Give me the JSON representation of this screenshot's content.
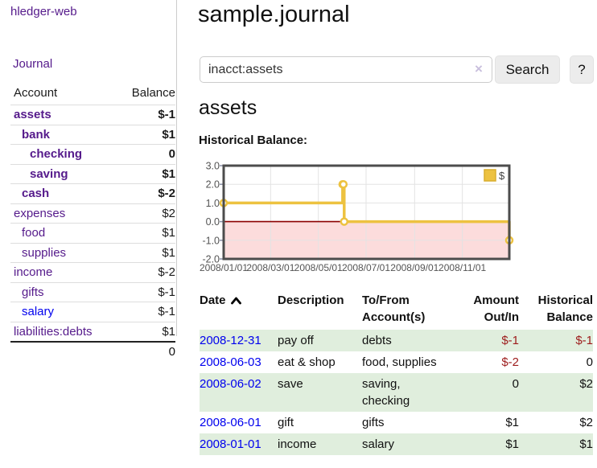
{
  "app": {
    "brand": "hledger-web",
    "journal_link": "Journal"
  },
  "colors": {
    "link_purple": "#551a8b",
    "link_blue": "#0000ee",
    "negative_strong": "#7d0b0b",
    "negative_muted": "#bc7676",
    "negative_table": "#9d1c1c",
    "row_shade_green": "#e0eedd",
    "series_gold": "#edc240",
    "negative_region_pink": "#fcdcdc",
    "zero_line_maroon": "#8b0000",
    "chart_border_gray": "#4c4c4c"
  },
  "sidebar": {
    "header": {
      "account": "Account",
      "balance": "Balance"
    },
    "accounts": [
      {
        "name": "assets",
        "depth": 1,
        "bold": true,
        "balance": "$-1"
      },
      {
        "name": "bank",
        "depth": 2,
        "bold": true,
        "balance": "$1"
      },
      {
        "name": "checking",
        "depth": 3,
        "bold": true,
        "balance": "0"
      },
      {
        "name": "saving",
        "depth": 3,
        "bold": true,
        "balance": "$1"
      },
      {
        "name": "cash",
        "depth": 2,
        "bold": true,
        "balance": "$-2"
      },
      {
        "name": "expenses",
        "depth": 1,
        "bold": false,
        "balance": "$2"
      },
      {
        "name": "food",
        "depth": 2,
        "bold": false,
        "balance": "$1"
      },
      {
        "name": "supplies",
        "depth": 2,
        "bold": false,
        "balance": "$1"
      },
      {
        "name": "income",
        "depth": 1,
        "bold": false,
        "balance": "$-2"
      },
      {
        "name": "gifts",
        "depth": 2,
        "bold": false,
        "balance": "$-1"
      },
      {
        "name": "salary",
        "depth": 2,
        "bold": false,
        "balance": "$-1",
        "blue": true
      },
      {
        "name": "liabilities:debts",
        "depth": 1,
        "bold": false,
        "balance": "$1"
      }
    ],
    "total": "0"
  },
  "main": {
    "title": "sample.journal",
    "search": {
      "value": "inacct:assets",
      "clear_icon": "×",
      "button_label": "Search",
      "help_label": "?"
    },
    "account_heading": "assets",
    "section_label": "Historical Balance:"
  },
  "chart_data": {
    "type": "line",
    "title": "Historical Balance:",
    "step": true,
    "series": [
      {
        "name": "$",
        "color": "#edc240",
        "points": [
          [
            "2008-01-01",
            1
          ],
          [
            "2008-06-01",
            2
          ],
          [
            "2008-06-02",
            2
          ],
          [
            "2008-06-03",
            0
          ],
          [
            "2008-12-31",
            -1
          ]
        ]
      }
    ],
    "x_range": [
      "2008-01-01",
      "2008-12-31"
    ],
    "ylim": [
      -2,
      3
    ],
    "y_ticks": [
      3.0,
      2.0,
      1.0,
      0.0,
      -1.0,
      -2.0
    ],
    "y_tick_labels": [
      "3.0",
      "2.0",
      "1.0",
      "0.0",
      "-1.0",
      "-2.0"
    ],
    "x_tick_labels": [
      "2008/01/01",
      "2008/03/01",
      "2008/05/01",
      "2008/07/01",
      "2008/09/01",
      "2008/11/01"
    ],
    "grid": true,
    "legend": {
      "label": "$",
      "position": "top-right"
    },
    "negative_region_fill": "#fcdcdc",
    "zero_line_color": "#8b0000"
  },
  "register": {
    "headers": {
      "date": "Date",
      "description": "Description",
      "accounts": "To/From Account(s)",
      "amount": "Amount Out/In",
      "balance": "Historical Balance"
    },
    "rows": [
      {
        "date": "2008-12-31",
        "description": "pay off",
        "accounts": "debts",
        "amount": "$-1",
        "balance": "$-1",
        "shade": true
      },
      {
        "date": "2008-06-03",
        "description": "eat & shop",
        "accounts": "food, supplies",
        "amount": "$-2",
        "balance": "0",
        "shade": false
      },
      {
        "date": "2008-06-02",
        "description": "save",
        "accounts": "saving, checking",
        "amount": "0",
        "balance": "$2",
        "shade": true
      },
      {
        "date": "2008-06-01",
        "description": "gift",
        "accounts": "gifts",
        "amount": "$1",
        "balance": "$2",
        "shade": false
      },
      {
        "date": "2008-01-01",
        "description": "income",
        "accounts": "salary",
        "amount": "$1",
        "balance": "$1",
        "shade": true
      }
    ]
  }
}
